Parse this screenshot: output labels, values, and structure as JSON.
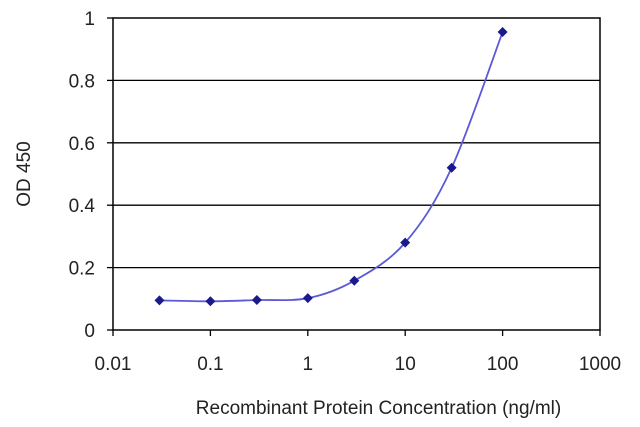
{
  "chart_data": {
    "type": "line",
    "title": "",
    "xlabel": "Recombinant Protein Concentration (ng/ml)",
    "ylabel": "OD 450",
    "x_scale": "log",
    "xlim": [
      0.01,
      1000
    ],
    "ylim": [
      0,
      1
    ],
    "x_ticks": [
      0.01,
      0.1,
      1,
      10,
      100,
      1000
    ],
    "x_tick_labels": [
      "0.01",
      "0.1",
      "1",
      "10",
      "100",
      "1000"
    ],
    "y_ticks": [
      0,
      0.2,
      0.4,
      0.6,
      0.8,
      1
    ],
    "y_tick_labels": [
      "0",
      "0.2",
      "0.4",
      "0.6",
      "0.8",
      "1"
    ],
    "grid": "horizontal",
    "legend": "none",
    "series": [
      {
        "x": [
          0.03,
          0.1,
          0.3,
          1,
          3,
          10,
          30,
          100
        ],
        "y": [
          0.095,
          0.092,
          0.096,
          0.102,
          0.158,
          0.28,
          0.52,
          0.955
        ],
        "color": "#1a1a8c",
        "line_color": "#5a5ad6"
      }
    ]
  }
}
